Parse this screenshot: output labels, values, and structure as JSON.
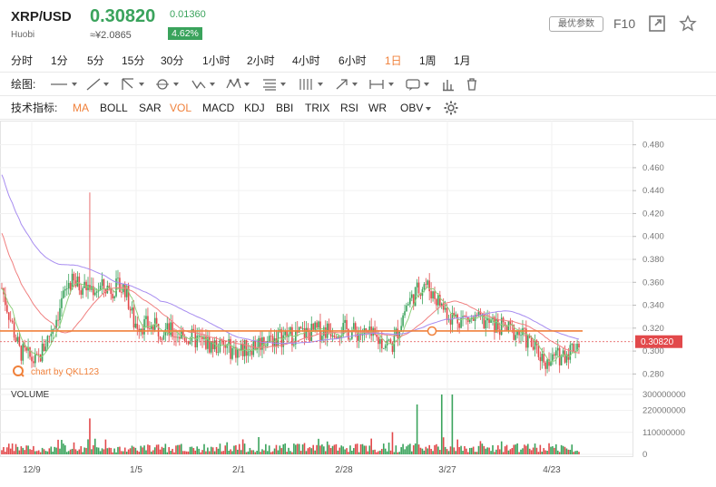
{
  "header": {
    "symbol": "XRP/USD",
    "exchange": "Huobi",
    "price": "0.30820",
    "cny_price": "≈¥2.0865",
    "change": "0.01360",
    "change_pct": "4.62%",
    "settings_label": "最优参数",
    "f10_label": "F10",
    "accent_up": "#3aa35c",
    "accent_active": "#f0813b"
  },
  "periods": [
    {
      "label": "分时",
      "active": false
    },
    {
      "label": "1分",
      "active": false
    },
    {
      "label": "5分",
      "active": false
    },
    {
      "label": "15分",
      "active": false
    },
    {
      "label": "30分",
      "active": false
    },
    {
      "label": "1小时",
      "active": false
    },
    {
      "label": "2小时",
      "active": false
    },
    {
      "label": "4小时",
      "active": false
    },
    {
      "label": "6小时",
      "active": false
    },
    {
      "label": "1日",
      "active": true
    },
    {
      "label": "1周",
      "active": false
    },
    {
      "label": "1月",
      "active": false
    }
  ],
  "draw_tools": {
    "label": "绘图:",
    "tools": [
      "line-tool-icon",
      "ray-tool-icon",
      "channel-tool-icon",
      "circle-tool-icon",
      "wave-tool-icon",
      "pattern-tool-icon",
      "fib-tool-icon",
      "gann-tool-icon",
      "arrow-tool-icon",
      "measure-tool-icon",
      "comment-tool-icon",
      "bars-tool-icon",
      "trash-icon"
    ]
  },
  "indicators": {
    "label": "技术指标:",
    "items": [
      {
        "label": "MA",
        "active": true
      },
      {
        "label": "BOLL",
        "active": false
      },
      {
        "label": "SAR",
        "active": false
      },
      {
        "label": "VOL",
        "active": true
      },
      {
        "label": "MACD",
        "active": false
      },
      {
        "label": "KDJ",
        "active": false
      },
      {
        "label": "BBI",
        "active": false
      },
      {
        "label": "TRIX",
        "active": false
      },
      {
        "label": "RSI",
        "active": false
      },
      {
        "label": "WR",
        "active": false
      },
      {
        "label": "OBV",
        "active": false
      }
    ]
  },
  "watermark": "chart by QKL123",
  "volume_label": "VOLUME",
  "chart_data": {
    "type": "candlestick",
    "price_axis": {
      "ticks": [
        "0.480",
        "0.460",
        "0.440",
        "0.420",
        "0.400",
        "0.380",
        "0.360",
        "0.340",
        "0.320",
        "0.300",
        "0.280"
      ],
      "range": [
        0.27,
        0.49
      ]
    },
    "volume_axis": {
      "ticks": [
        "300000000",
        "220000000",
        "110000000",
        "0"
      ],
      "range": [
        0,
        300000000
      ]
    },
    "x_labels": [
      "12/9",
      "1/5",
      "2/1",
      "2/28",
      "3/27",
      "4/23"
    ],
    "current_price_label": "0.30820",
    "current_price": 0.3082,
    "horizontal_line": 0.3175,
    "colors": {
      "up": "#3aa35c",
      "down": "#e2494b",
      "ma1": "#f08080",
      "ma2": "#8fd07e",
      "ma3": "#a78cf0",
      "hline": "#f0813b"
    }
  }
}
